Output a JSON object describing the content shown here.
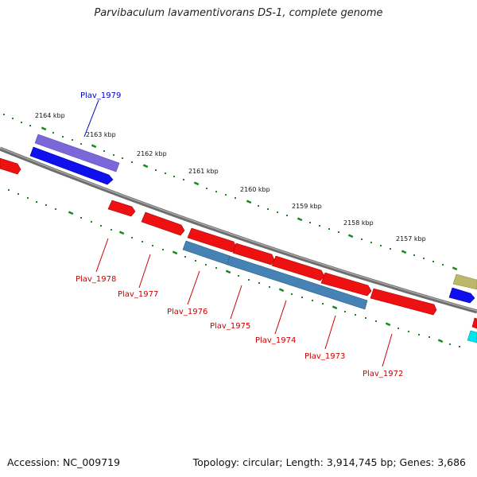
{
  "title": "Parvibaculum lavamentivorans DS-1, complete genome",
  "footer": {
    "accession": "Accession: NC_009719",
    "summary": "Topology: circular; Length: 3,914,745 bp; Genes: 3,686"
  },
  "ticks": [
    "2164 kbp",
    "2163 kbp",
    "2162 kbp",
    "2161 kbp",
    "2160 kbp",
    "2159 kbp",
    "2158 kbp",
    "2157 kbp"
  ],
  "genes": [
    "Plav_1979",
    "Plav_1978",
    "Plav_1977",
    "Plav_1976",
    "Plav_1975",
    "Plav_1974",
    "Plav_1973",
    "Plav_1972"
  ],
  "colors": {
    "backbone": "#808080",
    "tick_dots": "#1a8a1a",
    "cds": "#ee1111",
    "blue": "#1010ee",
    "purple": "#7b68d8",
    "steelblue": "#4682b4",
    "olive": "#bdb76b",
    "cyan": "#00e5ee",
    "label_red": "#cc0000",
    "label_blue": "#0000cc"
  }
}
